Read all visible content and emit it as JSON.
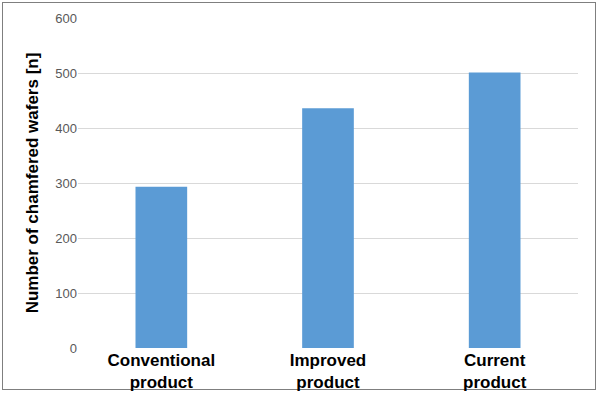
{
  "chart_data": {
    "type": "bar",
    "y_label": "Number of chamfered wafers [n]",
    "categories": [
      "Conventional\nproduct",
      "Improved\nproduct",
      "Current\nproduct"
    ],
    "values": [
      293,
      436,
      501
    ],
    "color": "#5b9bd5",
    "ylim": [
      0,
      600
    ],
    "yticks": [
      0,
      100,
      200,
      300,
      400,
      500,
      600
    ],
    "grid": true
  }
}
